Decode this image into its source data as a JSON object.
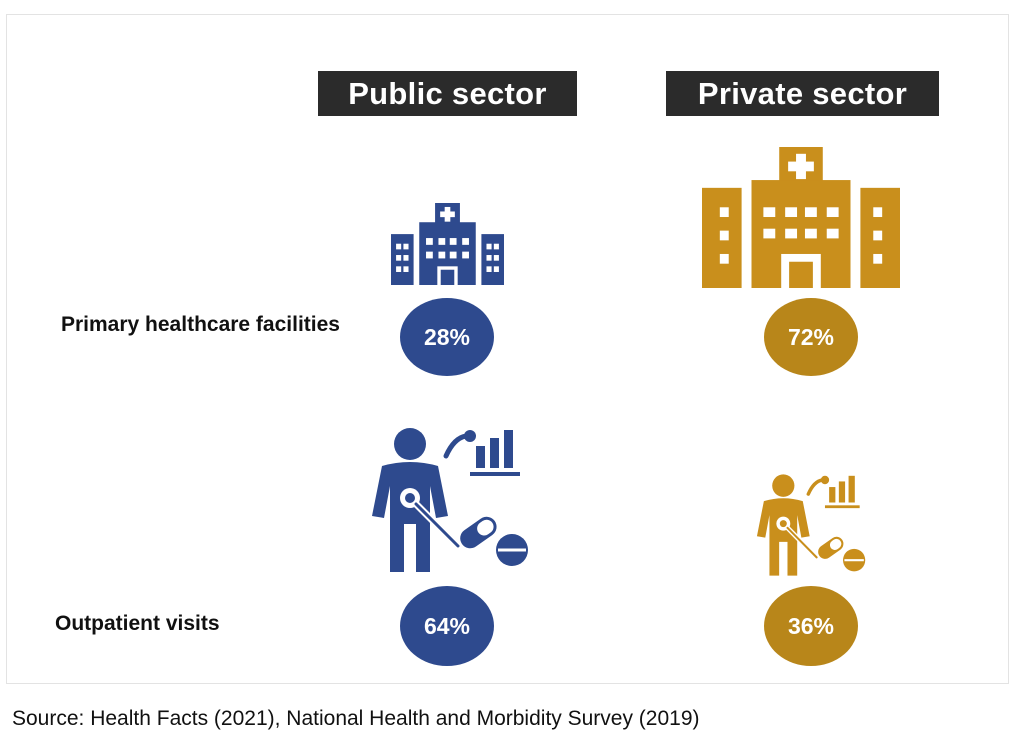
{
  "headers": {
    "public": "Public sector",
    "private": "Private sector"
  },
  "rows": {
    "primary": {
      "label": "Primary healthcare facilities",
      "public_value": "28%",
      "private_value": "72%"
    },
    "outpatient": {
      "label": "Outpatient visits",
      "public_value": "64%",
      "private_value": "36%"
    }
  },
  "icons": {
    "primary": "hospital-building-icon",
    "outpatient": "doctor-with-stethoscope-chart-pills-icon"
  },
  "colors": {
    "public": "#2e4a8e",
    "private": "#b8861a",
    "header_bg": "#2b2b2b"
  },
  "source": "Source: Health Facts (2021), National Health and Morbidity Survey (2019)"
}
